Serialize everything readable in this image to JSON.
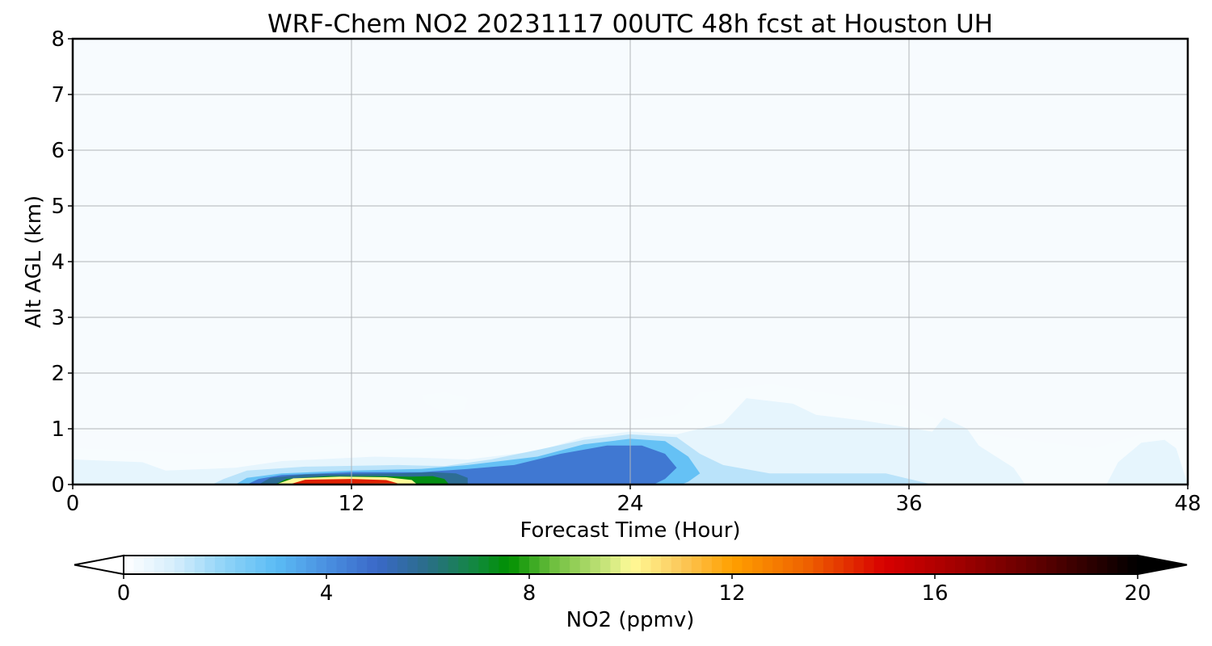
{
  "chart_data": {
    "type": "heatmap",
    "title": "WRF-Chem NO2  20231117 00UTC 48h fcst at Houston UH",
    "xlabel": "Forecast Time (Hour)",
    "ylabel": "Alt AGL (km)",
    "xlim": [
      0,
      48
    ],
    "ylim": [
      0,
      8
    ],
    "x_ticks": [
      "0",
      "12",
      "24",
      "36",
      "48"
    ],
    "y_ticks": [
      "0",
      "1",
      "2",
      "3",
      "4",
      "5",
      "6",
      "7",
      "8"
    ],
    "grid": true,
    "colorbar": {
      "label": "NO2  (ppmv)",
      "range": [
        0,
        20
      ],
      "ticks": [
        "0",
        "4",
        "8",
        "12",
        "16",
        "20"
      ],
      "extend": "both",
      "stops": [
        {
          "value": 0,
          "color": "#ffffff"
        },
        {
          "value": 1,
          "color": "#d6eefc"
        },
        {
          "value": 2,
          "color": "#8fd3f7"
        },
        {
          "value": 3,
          "color": "#5bbcf5"
        },
        {
          "value": 4,
          "color": "#4a90e0"
        },
        {
          "value": 5,
          "color": "#3a68c8"
        },
        {
          "value": 6,
          "color": "#2a6e88"
        },
        {
          "value": 7,
          "color": "#108a3a"
        },
        {
          "value": 7.6,
          "color": "#009000"
        },
        {
          "value": 8.5,
          "color": "#70c040"
        },
        {
          "value": 9.6,
          "color": "#d0e880"
        },
        {
          "value": 10,
          "color": "#fffb98"
        },
        {
          "value": 11,
          "color": "#fcc85a"
        },
        {
          "value": 12,
          "color": "#ffa000"
        },
        {
          "value": 13.5,
          "color": "#ee6000"
        },
        {
          "value": 15,
          "color": "#d80000"
        },
        {
          "value": 16.5,
          "color": "#a00000"
        },
        {
          "value": 18,
          "color": "#600000"
        },
        {
          "value": 20,
          "color": "#000000"
        }
      ]
    },
    "regions": [
      {
        "min": 0.2,
        "points": [
          [
            0,
            0
          ],
          [
            0,
            0.65
          ],
          [
            2,
            0.62
          ],
          [
            5,
            0.55
          ],
          [
            8,
            0.6
          ],
          [
            12,
            0.75
          ],
          [
            15,
            0.85
          ],
          [
            18,
            0.85
          ],
          [
            22,
            1.1
          ],
          [
            24,
            1.15
          ],
          [
            26,
            1.25
          ],
          [
            27,
            1.65
          ],
          [
            30,
            1.8
          ],
          [
            33,
            1.6
          ],
          [
            36,
            1.4
          ],
          [
            38,
            1.0
          ],
          [
            41,
            0.8
          ],
          [
            44,
            0.65
          ],
          [
            46,
            0.9
          ],
          [
            48,
            0.95
          ],
          [
            48,
            0
          ]
        ]
      },
      {
        "min": 0.2,
        "points": [
          [
            15,
            1.6
          ],
          [
            16,
            1.65
          ],
          [
            17,
            1.55
          ],
          [
            16.8,
            1.3
          ],
          [
            16,
            1.3
          ],
          [
            15.2,
            1.45
          ]
        ]
      },
      {
        "min": 0.6,
        "points": [
          [
            0,
            0
          ],
          [
            0,
            0.45
          ],
          [
            3,
            0.4
          ],
          [
            4,
            0.25
          ],
          [
            7,
            0.3
          ],
          [
            9,
            0.42
          ],
          [
            13,
            0.5
          ],
          [
            15,
            0.48
          ],
          [
            17,
            0.45
          ],
          [
            20,
            0.6
          ],
          [
            22,
            0.85
          ],
          [
            24,
            0.95
          ],
          [
            26,
            0.9
          ],
          [
            28,
            1.1
          ],
          [
            29,
            1.55
          ],
          [
            31,
            1.45
          ],
          [
            32,
            1.25
          ],
          [
            34,
            1.15
          ],
          [
            35.5,
            1.05
          ],
          [
            37,
            0.95
          ],
          [
            37.5,
            1.2
          ],
          [
            38.5,
            1.0
          ],
          [
            39,
            0.7
          ],
          [
            40.5,
            0.3
          ],
          [
            41,
            0
          ],
          [
            44.5,
            0
          ],
          [
            45,
            0.4
          ],
          [
            46,
            0.75
          ],
          [
            47,
            0.8
          ],
          [
            47.5,
            0.65
          ],
          [
            48,
            0
          ]
        ]
      },
      {
        "min": 1.4,
        "points": [
          [
            6,
            0
          ],
          [
            6.5,
            0.1
          ],
          [
            7.5,
            0.25
          ],
          [
            10,
            0.32
          ],
          [
            14,
            0.35
          ],
          [
            16,
            0.33
          ],
          [
            18,
            0.45
          ],
          [
            20,
            0.62
          ],
          [
            22,
            0.8
          ],
          [
            24,
            0.9
          ],
          [
            26,
            0.85
          ],
          [
            27,
            0.55
          ],
          [
            28,
            0.35
          ],
          [
            30,
            0.2
          ],
          [
            33,
            0.2
          ],
          [
            35,
            0.2
          ],
          [
            36,
            0.1
          ],
          [
            36.5,
            0.05
          ],
          [
            37,
            0
          ]
        ]
      },
      {
        "min": 2.8,
        "points": [
          [
            7,
            0
          ],
          [
            7.5,
            0.12
          ],
          [
            9,
            0.2
          ],
          [
            12,
            0.25
          ],
          [
            15,
            0.28
          ],
          [
            17,
            0.35
          ],
          [
            20,
            0.5
          ],
          [
            22,
            0.72
          ],
          [
            24,
            0.82
          ],
          [
            25.5,
            0.78
          ],
          [
            26.5,
            0.5
          ],
          [
            27,
            0.2
          ],
          [
            26.5,
            0.05
          ],
          [
            26.2,
            0
          ]
        ]
      },
      {
        "min": 4.6,
        "points": [
          [
            7.5,
            0
          ],
          [
            8,
            0.1
          ],
          [
            9,
            0.17
          ],
          [
            12,
            0.22
          ],
          [
            15,
            0.22
          ],
          [
            17,
            0.28
          ],
          [
            19,
            0.35
          ],
          [
            21,
            0.55
          ],
          [
            23,
            0.7
          ],
          [
            24.5,
            0.7
          ],
          [
            25.5,
            0.55
          ],
          [
            26,
            0.3
          ],
          [
            25.5,
            0.1
          ],
          [
            25,
            0
          ]
        ]
      },
      {
        "min": 5.8,
        "points": [
          [
            8,
            0
          ],
          [
            8.5,
            0.12
          ],
          [
            10,
            0.18
          ],
          [
            12,
            0.19
          ],
          [
            14,
            0.2
          ],
          [
            15.5,
            0.22
          ],
          [
            16.5,
            0.2
          ],
          [
            17,
            0.12
          ],
          [
            17,
            0
          ]
        ]
      },
      {
        "min": 7.4,
        "points": [
          [
            8.7,
            0
          ],
          [
            9.2,
            0.1
          ],
          [
            11,
            0.15
          ],
          [
            13,
            0.15
          ],
          [
            14.5,
            0.14
          ],
          [
            15.5,
            0.15
          ],
          [
            16,
            0.1
          ],
          [
            16.2,
            0
          ]
        ]
      },
      {
        "min": 10,
        "points": [
          [
            8.8,
            0.01
          ],
          [
            9.5,
            0.11
          ],
          [
            11.5,
            0.14
          ],
          [
            13.5,
            0.13
          ],
          [
            14.6,
            0.08
          ],
          [
            14.8,
            0.01
          ]
        ]
      },
      {
        "min": 14.5,
        "points": [
          [
            9.4,
            0.01
          ],
          [
            10,
            0.085
          ],
          [
            12,
            0.1
          ],
          [
            13.5,
            0.08
          ],
          [
            14,
            0.02
          ]
        ]
      }
    ]
  }
}
